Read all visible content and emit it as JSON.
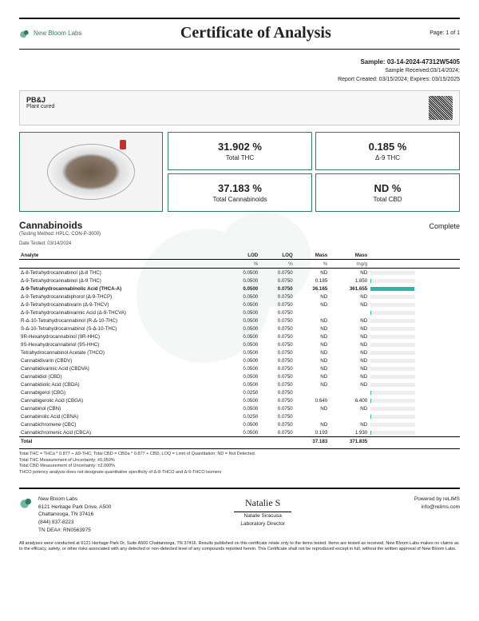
{
  "header": {
    "brand": "New Bloom Labs",
    "title": "Certificate of Analysis",
    "page": "Page: 1 of 1"
  },
  "sample": {
    "id_label": "Sample:",
    "id": "03-14-2024-47312W5405",
    "received": "Sample Received:03/14/2024;",
    "report": "Report Created: 03/15/2024; Expires: 03/15/2025"
  },
  "product": {
    "name": "PB&J",
    "type": "Plant cured"
  },
  "stats": {
    "thc": {
      "value": "31.902 %",
      "label": "Total THC"
    },
    "d9": {
      "value": "0.185 %",
      "label": "Δ-9 THC"
    },
    "cann": {
      "value": "37.183 %",
      "label": "Total Cannabinoids"
    },
    "cbd": {
      "value": "ND %",
      "label": "Total CBD"
    }
  },
  "section": {
    "title": "Cannabinoids",
    "method": "(Testing Method: HPLC, CON-P-3000)",
    "tested": "Date Tested: 03/14/2024",
    "status": "Complete"
  },
  "columns": {
    "analyte": "Analyte",
    "lod": "LOD",
    "loq": "LOQ",
    "mass_pct": "Mass",
    "mass_mg": "Mass",
    "u_pct": "%",
    "u_mg": "mg/g"
  },
  "rows": [
    {
      "a": "Δ-8-Tetrahydrocannabinol (Δ-8 THC)",
      "lod": "0.0500",
      "loq": "0.0750",
      "p": "ND",
      "m": "ND",
      "bar": 0
    },
    {
      "a": "Δ-9-Tetrahydrocannabinol (Δ-9 THC)",
      "lod": "0.0500",
      "loq": "0.0750",
      "p": "0.185",
      "m": "1.850",
      "bar": 1
    },
    {
      "a": "Δ-9-Tetrahydrocannabinolic Acid (THCA-A)",
      "lod": "0.0500",
      "loq": "0.0750",
      "p": "36.165",
      "m": "361.655",
      "bar": 97,
      "hl": true
    },
    {
      "a": "Δ-9-Tetrahydrocannabiphorol (Δ-9-THCP)",
      "lod": "0.0500",
      "loq": "0.0750",
      "p": "ND",
      "m": "ND",
      "bar": 0
    },
    {
      "a": "Δ-9-Tetrahydrocannabivarin (Δ-9-THCV)",
      "lod": "0.0500",
      "loq": "0.0750",
      "p": "ND",
      "m": "ND",
      "bar": 0
    },
    {
      "a": "Δ-9-Tetrahydrocannabivarinic Acid (Δ-9-THCVA)",
      "lod": "0.0500",
      "loq": "0.0750",
      "p": "<LOQ",
      "m": "<LOQ",
      "bar": 1
    },
    {
      "a": "R-Δ-10-Tetrahydrocannabinol (R-Δ-10-THC)",
      "lod": "0.0500",
      "loq": "0.0750",
      "p": "ND",
      "m": "ND",
      "bar": 0
    },
    {
      "a": "S-Δ-10-Tetrahydrocannabinol (S-Δ-10-THC)",
      "lod": "0.0500",
      "loq": "0.0750",
      "p": "ND",
      "m": "ND",
      "bar": 0
    },
    {
      "a": "9R-Hexahydrocannabinol (9R-HHC)",
      "lod": "0.0500",
      "loq": "0.0750",
      "p": "ND",
      "m": "ND",
      "bar": 0
    },
    {
      "a": "9S-Hexahydrocannabinol (9S-HHC)",
      "lod": "0.0500",
      "loq": "0.0750",
      "p": "ND",
      "m": "ND",
      "bar": 0
    },
    {
      "a": "Tetrahydrocannabinol Acetate (THCO)",
      "lod": "0.0500",
      "loq": "0.0750",
      "p": "ND",
      "m": "ND",
      "bar": 0
    },
    {
      "a": "Cannabidivarin (CBDV)",
      "lod": "0.0500",
      "loq": "0.0750",
      "p": "ND",
      "m": "ND",
      "bar": 0
    },
    {
      "a": "Cannabidivarinic Acid (CBDVA)",
      "lod": "0.0500",
      "loq": "0.0750",
      "p": "ND",
      "m": "ND",
      "bar": 0
    },
    {
      "a": "Cannabidiol (CBD)",
      "lod": "0.0500",
      "loq": "0.0750",
      "p": "ND",
      "m": "ND",
      "bar": 0
    },
    {
      "a": "Cannabidiolic Acid (CBDA)",
      "lod": "0.0500",
      "loq": "0.0750",
      "p": "ND",
      "m": "ND",
      "bar": 0
    },
    {
      "a": "Cannabigerol (CBG)",
      "lod": "0.0250",
      "loq": "0.0750",
      "p": "<LOQ",
      "m": "<LOQ",
      "bar": 1
    },
    {
      "a": "Cannabigerolic Acid (CBGA)",
      "lod": "0.0500",
      "loq": "0.0750",
      "p": "0.640",
      "m": "6.400",
      "bar": 2
    },
    {
      "a": "Cannabinol (CBN)",
      "lod": "0.0500",
      "loq": "0.0750",
      "p": "ND",
      "m": "ND",
      "bar": 0
    },
    {
      "a": "Cannabinolic Acid (CBNA)",
      "lod": "0.0250",
      "loq": "0.0750",
      "p": "<LOQ",
      "m": "<LOQ",
      "bar": 1
    },
    {
      "a": "Cannabichromene (CBC)",
      "lod": "0.0500",
      "loq": "0.0750",
      "p": "ND",
      "m": "ND",
      "bar": 0
    },
    {
      "a": "Cannabichromenic Acid (CBCA)",
      "lod": "0.0500",
      "loq": "0.0750",
      "p": "0.193",
      "m": "1.930",
      "bar": 1
    }
  ],
  "total": {
    "label": "Total",
    "p": "37.183",
    "m": "371.835"
  },
  "footnotes": {
    "l1": "Total THC = THCa * 0.877 + Δ9-THC; Total CBD = CBDa * 0.877 + CBD; LOQ = Limit of Quantitation; ND = Not Detected.",
    "l2": "Total THC Measurement of Uncertainty: ±0.050%",
    "l3": "Total CBD Measurement of Uncertainty: ±2.000%",
    "l4": "THCO potency analysis does not designate quantitative specificity of Δ-8-THCO and Δ-9-THCO isomers"
  },
  "footer": {
    "lab": {
      "name": "New Bloom Labs",
      "addr1": "6121 Heritage Park Drive, A500",
      "addr2": "Chattanooga, TN 37416",
      "phone": "(844) 837-8223",
      "dea": "TN DEA#: RN0563975"
    },
    "sig": {
      "name": "Natalie Siracusa",
      "role": "Laboratory Director"
    },
    "powered": {
      "l1": "Powered by reLIMS",
      "l2": "info@relims.com"
    }
  },
  "disclaimer": "All analyses were conducted at 6121 Heritage Park Dr, Suite A500 Chattanooga, TN 37416. Results published on this certificate relate only to the items tested. Items are tested as received. New Bloom Labs makes no claims as to the efficacy, safety, or other risks associated with any detected or non-detected level of any compounds reported herein. This Certificate shall not be reproduced except in full, without the written approval of New Bloom Labs.",
  "colors": {
    "accent": "#2e7d5b",
    "bar": "#2fb5a6"
  }
}
